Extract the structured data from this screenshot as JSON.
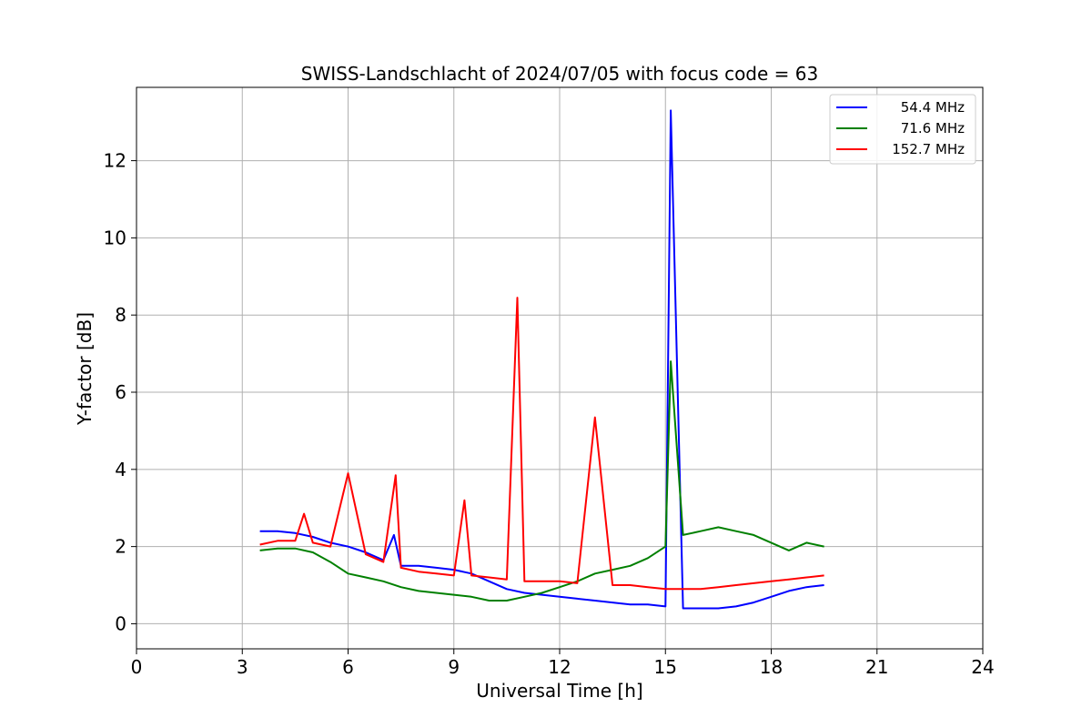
{
  "chart_data": {
    "type": "line",
    "title": "SWISS-Landschlacht of 2024/07/05 with focus code = 63",
    "xlabel": "Universal Time [h]",
    "ylabel": "Y-factor [dB]",
    "xlim": [
      0,
      24
    ],
    "ylim": [
      -0.65,
      13.9
    ],
    "xticks": [
      0,
      3,
      6,
      9,
      12,
      15,
      18,
      21,
      24
    ],
    "yticks": [
      0,
      2,
      4,
      6,
      8,
      10,
      12
    ],
    "grid": true,
    "legend_position": "top-right",
    "series": [
      {
        "name": "54.4 MHz",
        "color": "#0000ff",
        "x": [
          3.5,
          4.0,
          4.5,
          5.0,
          5.5,
          6.0,
          6.5,
          7.0,
          7.3,
          7.5,
          8.0,
          8.5,
          9.0,
          9.5,
          10.0,
          10.5,
          11.0,
          11.5,
          12.0,
          12.5,
          13.0,
          13.5,
          14.0,
          14.5,
          15.0,
          15.15,
          15.5,
          16.0,
          16.5,
          17.0,
          17.5,
          18.0,
          18.5,
          19.0,
          19.5
        ],
        "y": [
          2.4,
          2.4,
          2.35,
          2.25,
          2.1,
          2.0,
          1.85,
          1.65,
          2.3,
          1.5,
          1.5,
          1.45,
          1.4,
          1.3,
          1.1,
          0.9,
          0.8,
          0.75,
          0.7,
          0.65,
          0.6,
          0.55,
          0.5,
          0.5,
          0.45,
          13.3,
          0.4,
          0.4,
          0.4,
          0.45,
          0.55,
          0.7,
          0.85,
          0.95,
          1.0
        ]
      },
      {
        "name": "71.6 MHz",
        "color": "#008000",
        "x": [
          3.5,
          4.0,
          4.5,
          5.0,
          5.5,
          6.0,
          6.5,
          7.0,
          7.5,
          8.0,
          8.5,
          9.0,
          9.5,
          10.0,
          10.5,
          11.0,
          11.5,
          12.0,
          12.5,
          13.0,
          13.5,
          14.0,
          14.5,
          15.0,
          15.15,
          15.5,
          16.0,
          16.5,
          17.0,
          17.5,
          18.0,
          18.5,
          19.0,
          19.5
        ],
        "y": [
          1.9,
          1.95,
          1.95,
          1.85,
          1.6,
          1.3,
          1.2,
          1.1,
          0.95,
          0.85,
          0.8,
          0.75,
          0.7,
          0.6,
          0.6,
          0.7,
          0.8,
          0.95,
          1.1,
          1.3,
          1.4,
          1.5,
          1.7,
          2.0,
          6.8,
          2.3,
          2.4,
          2.5,
          2.4,
          2.3,
          2.1,
          1.9,
          2.1,
          2.0
        ]
      },
      {
        "name": "152.7 MHz",
        "color": "#ff0000",
        "x": [
          3.5,
          4.0,
          4.5,
          4.75,
          5.0,
          5.5,
          6.0,
          6.5,
          7.0,
          7.35,
          7.5,
          8.0,
          8.5,
          9.0,
          9.3,
          9.5,
          10.0,
          10.5,
          10.8,
          11.0,
          11.5,
          12.0,
          12.5,
          13.0,
          13.5,
          14.0,
          14.5,
          15.0,
          15.5,
          16.0,
          16.5,
          17.0,
          17.5,
          18.0,
          18.5,
          19.0,
          19.5
        ],
        "y": [
          2.05,
          2.15,
          2.15,
          2.85,
          2.1,
          2.0,
          3.9,
          1.8,
          1.6,
          3.85,
          1.45,
          1.35,
          1.3,
          1.25,
          3.2,
          1.25,
          1.2,
          1.15,
          8.45,
          1.1,
          1.1,
          1.1,
          1.05,
          5.35,
          1.0,
          1.0,
          0.95,
          0.9,
          0.9,
          0.9,
          0.95,
          1.0,
          1.05,
          1.1,
          1.15,
          1.2,
          1.25
        ]
      }
    ]
  }
}
